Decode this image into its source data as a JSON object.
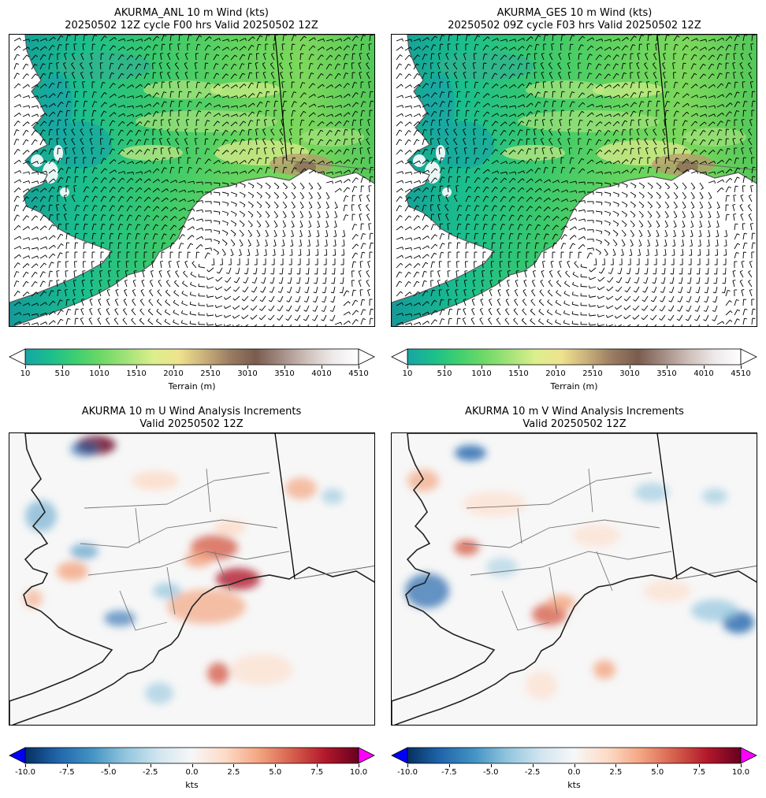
{
  "panels": [
    {
      "id": "anl",
      "title_line1": "AKURMA_ANL 10 m Wind (kts)",
      "title_line2": "20250502 12Z cycle F00 hrs Valid 20250502 12Z",
      "type": "terrain",
      "colorbar": {
        "label": "Terrain (m)",
        "ticks": [
          "10",
          "510",
          "1010",
          "1510",
          "2010",
          "2510",
          "3010",
          "3510",
          "4010",
          "4510"
        ],
        "extend": "both",
        "colormap": "terrain"
      }
    },
    {
      "id": "ges",
      "title_line1": "AKURMA_GES 10 m Wind (kts)",
      "title_line2": "20250502 09Z cycle F03 hrs Valid 20250502 12Z",
      "type": "terrain",
      "colorbar": {
        "label": "Terrain (m)",
        "ticks": [
          "10",
          "510",
          "1010",
          "1510",
          "2010",
          "2510",
          "3010",
          "3510",
          "4010",
          "4510"
        ],
        "extend": "both",
        "colormap": "terrain"
      }
    },
    {
      "id": "u_inc",
      "title_line1": "AKURMA 10 m U Wind Analysis Increments",
      "title_line2": "Valid 20250502 12Z",
      "type": "increment",
      "colorbar": {
        "label": "kts",
        "ticks": [
          "-10.0",
          "-7.5",
          "-5.0",
          "-2.5",
          "0.0",
          "2.5",
          "5.0",
          "7.5",
          "10.0"
        ],
        "extend": "both",
        "colormap": "RdBu_r",
        "under_color": "#0000ff",
        "over_color": "#ff00ff"
      }
    },
    {
      "id": "v_inc",
      "title_line1": "AKURMA 10 m V Wind Analysis Increments",
      "title_line2": "Valid 20250502 12Z",
      "type": "increment",
      "colorbar": {
        "label": "kts",
        "ticks": [
          "-10.0",
          "-7.5",
          "-5.0",
          "-2.5",
          "0.0",
          "2.5",
          "5.0",
          "7.5",
          "10.0"
        ],
        "extend": "both",
        "colormap": "RdBu_r",
        "under_color": "#0000ff",
        "over_color": "#ff00ff"
      }
    }
  ]
}
